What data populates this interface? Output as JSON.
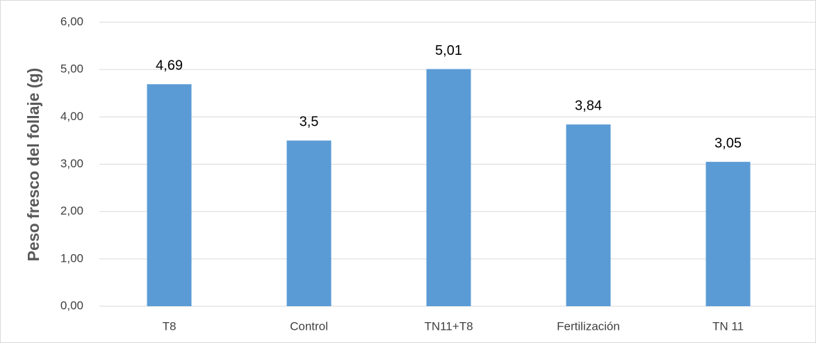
{
  "chart_data": {
    "type": "bar",
    "y_axis_label": "Peso fresco del follaje (g)",
    "categories": [
      "T8",
      "Control",
      "TN11+T8",
      "Fertilización",
      "TN 11"
    ],
    "values": [
      4.69,
      3.5,
      5.01,
      3.84,
      3.05
    ],
    "value_labels": [
      "4,69",
      "3,5",
      "5,01",
      "3,84",
      "3,05"
    ],
    "color": "#5b9bd5",
    "ylim": [
      0,
      6
    ],
    "yticks": [
      {
        "value": 0,
        "label": "0,00"
      },
      {
        "value": 1,
        "label": "1,00"
      },
      {
        "value": 2,
        "label": "2,00"
      },
      {
        "value": 3,
        "label": "3,00"
      },
      {
        "value": 4,
        "label": "4,00"
      },
      {
        "value": 5,
        "label": "5,00"
      },
      {
        "value": 6,
        "label": "6,00"
      }
    ],
    "grid": true
  }
}
